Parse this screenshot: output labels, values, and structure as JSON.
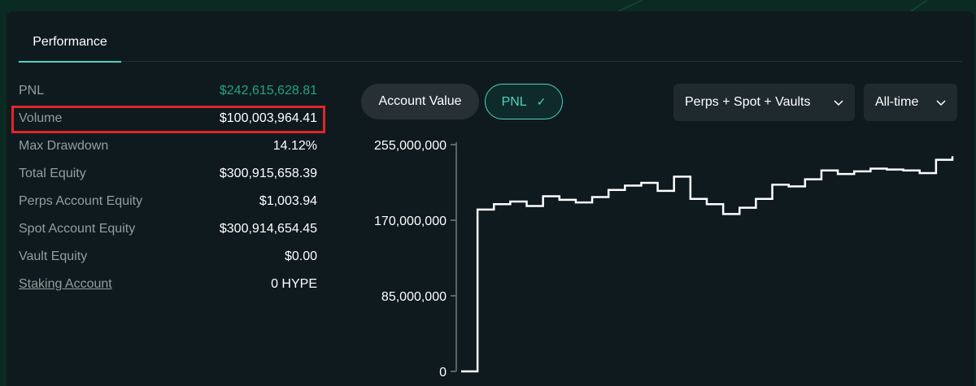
{
  "tabs": {
    "performance": "Performance"
  },
  "stats": [
    {
      "label": "PNL",
      "value": "$242,615,628.81",
      "positive": true
    },
    {
      "label": "Volume",
      "value": "$100,003,964.41"
    },
    {
      "label": "Max Drawdown",
      "value": "14.12%"
    },
    {
      "label": "Total Equity",
      "value": "$300,915,658.39"
    },
    {
      "label": "Perps Account Equity",
      "value": "$1,003.94"
    },
    {
      "label": "Spot Account Equity",
      "value": "$300,914,654.45"
    },
    {
      "label": "Vault Equity",
      "value": "$0.00"
    },
    {
      "label": "Staking Account",
      "value": "0 HYPE",
      "link": true
    }
  ],
  "toggles": {
    "account_value": "Account Value",
    "pnl": "PNL",
    "pnl_selected": true
  },
  "filters": {
    "market": "Perps + Spot + Vaults",
    "range": "All-time"
  },
  "colors": {
    "accent": "#50d2c1",
    "positive": "#1fa67d",
    "highlight": "#e0262b",
    "panel": "#0f1a1f"
  },
  "icons": {
    "check": "check-icon",
    "chevron": "chevron-down-icon"
  },
  "chart_data": {
    "type": "line",
    "ylim": [
      0,
      255000000
    ],
    "yticks": [
      {
        "value": 255000000,
        "label": "255,000,000"
      },
      {
        "value": 170000000,
        "label": "170,000,000"
      },
      {
        "value": 85000000,
        "label": "85,000,000"
      },
      {
        "value": 0,
        "label": "0"
      }
    ],
    "series": [
      {
        "values": [
          0,
          182000000,
          188000000,
          191000000,
          186000000,
          197000000,
          193000000,
          190000000,
          196000000,
          204000000,
          209000000,
          212000000,
          203000000,
          219000000,
          194000000,
          188000000,
          177000000,
          184000000,
          194000000,
          210000000,
          208000000,
          216000000,
          226000000,
          222000000,
          225000000,
          228000000,
          227000000,
          226000000,
          223000000,
          238000000,
          242000000
        ]
      }
    ]
  }
}
